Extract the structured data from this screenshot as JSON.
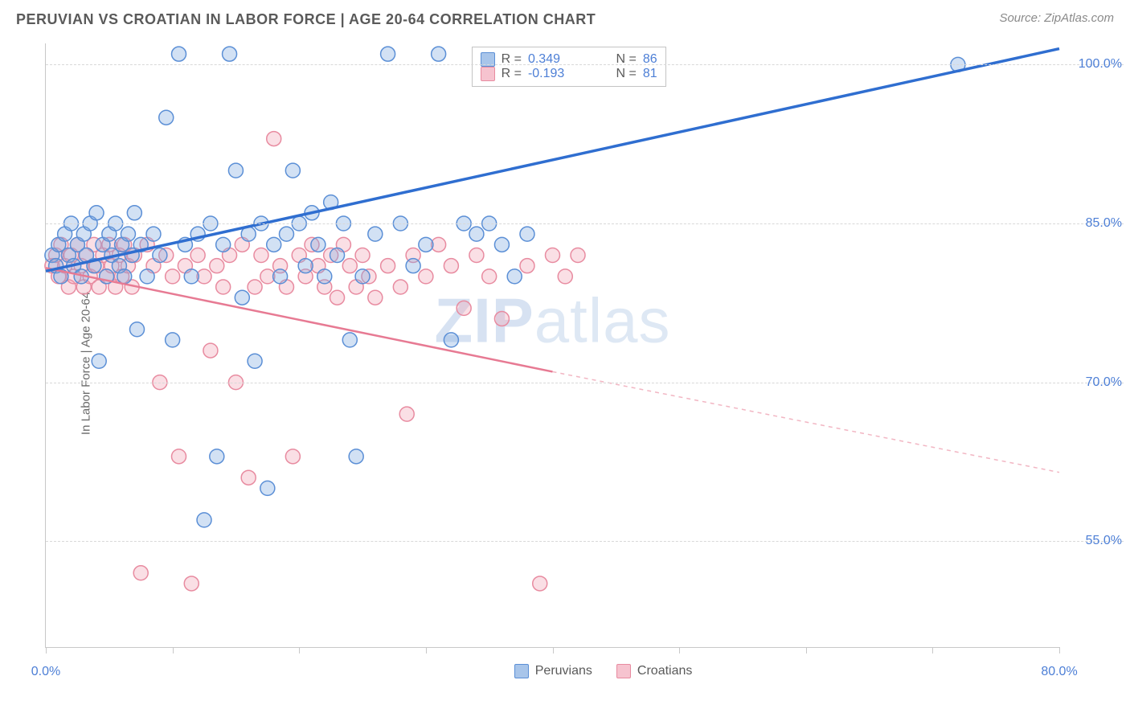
{
  "header": {
    "title": "PERUVIAN VS CROATIAN IN LABOR FORCE | AGE 20-64 CORRELATION CHART",
    "source": "Source: ZipAtlas.com"
  },
  "axes": {
    "y_label": "In Labor Force | Age 20-64",
    "x_min": 0.0,
    "x_max": 80.0,
    "y_min": 45.0,
    "y_max": 102.0,
    "y_ticks": [
      55.0,
      70.0,
      85.0,
      100.0
    ],
    "y_tick_labels": [
      "55.0%",
      "70.0%",
      "85.0%",
      "100.0%"
    ],
    "x_ticks": [
      0,
      10,
      20,
      30,
      40,
      50,
      60,
      70,
      80
    ],
    "x_tick_labels_shown": {
      "0": "0.0%",
      "80": "80.0%"
    }
  },
  "series": {
    "peruvians": {
      "label": "Peruvians",
      "color_fill": "#7ea9e0",
      "color_stroke": "#5b8fd6",
      "marker_radius": 9,
      "R": "0.349",
      "N": "86",
      "trend": {
        "x1": 0,
        "y1": 80.5,
        "x2": 80,
        "y2": 101.5,
        "width": 3.5,
        "color": "#2f6ed0",
        "dash": ""
      },
      "points": [
        [
          0.5,
          82
        ],
        [
          0.8,
          81
        ],
        [
          1.0,
          83
        ],
        [
          1.2,
          80
        ],
        [
          1.5,
          84
        ],
        [
          1.8,
          82
        ],
        [
          2.0,
          85
        ],
        [
          2.2,
          81
        ],
        [
          2.5,
          83
        ],
        [
          2.8,
          80
        ],
        [
          3.0,
          84
        ],
        [
          3.2,
          82
        ],
        [
          3.5,
          85
        ],
        [
          3.8,
          81
        ],
        [
          4.0,
          86
        ],
        [
          4.2,
          72
        ],
        [
          4.5,
          83
        ],
        [
          4.8,
          80
        ],
        [
          5.0,
          84
        ],
        [
          5.2,
          82
        ],
        [
          5.5,
          85
        ],
        [
          5.8,
          81
        ],
        [
          6.0,
          83
        ],
        [
          6.2,
          80
        ],
        [
          6.5,
          84
        ],
        [
          6.8,
          82
        ],
        [
          7.0,
          86
        ],
        [
          7.2,
          75
        ],
        [
          7.5,
          83
        ],
        [
          8.0,
          80
        ],
        [
          8.5,
          84
        ],
        [
          9.0,
          82
        ],
        [
          9.5,
          95
        ],
        [
          10.0,
          74
        ],
        [
          10.5,
          101
        ],
        [
          11.0,
          83
        ],
        [
          11.5,
          80
        ],
        [
          12.0,
          84
        ],
        [
          12.5,
          57
        ],
        [
          13.0,
          85
        ],
        [
          13.5,
          63
        ],
        [
          14.0,
          83
        ],
        [
          14.5,
          101
        ],
        [
          15.0,
          90
        ],
        [
          15.5,
          78
        ],
        [
          16.0,
          84
        ],
        [
          16.5,
          72
        ],
        [
          17.0,
          85
        ],
        [
          17.5,
          60
        ],
        [
          18.0,
          83
        ],
        [
          18.5,
          80
        ],
        [
          19.0,
          84
        ],
        [
          19.5,
          90
        ],
        [
          20.0,
          85
        ],
        [
          20.5,
          81
        ],
        [
          21.0,
          86
        ],
        [
          21.5,
          83
        ],
        [
          22.0,
          80
        ],
        [
          22.5,
          87
        ],
        [
          23.0,
          82
        ],
        [
          23.5,
          85
        ],
        [
          24.0,
          74
        ],
        [
          24.5,
          63
        ],
        [
          25.0,
          80
        ],
        [
          26.0,
          84
        ],
        [
          27.0,
          101
        ],
        [
          28.0,
          85
        ],
        [
          29.0,
          81
        ],
        [
          30.0,
          83
        ],
        [
          31.0,
          101
        ],
        [
          32.0,
          74
        ],
        [
          33.0,
          85
        ],
        [
          34.0,
          84
        ],
        [
          35.0,
          85
        ],
        [
          36.0,
          83
        ],
        [
          37.0,
          80
        ],
        [
          38.0,
          84
        ],
        [
          72.0,
          100
        ]
      ]
    },
    "croatians": {
      "label": "Croatians",
      "color_fill": "#f0a4b4",
      "color_stroke": "#e88ba0",
      "marker_radius": 9,
      "R": "-0.193",
      "N": "81",
      "trend_solid": {
        "x1": 0,
        "y1": 80.8,
        "x2": 40,
        "y2": 71.0,
        "width": 2.5,
        "color": "#e77a93",
        "dash": ""
      },
      "trend_dash": {
        "x1": 40,
        "y1": 71.0,
        "x2": 80,
        "y2": 61.5,
        "width": 1.5,
        "color": "#f2b6c3",
        "dash": "5,5"
      },
      "points": [
        [
          0.5,
          81
        ],
        [
          0.8,
          82
        ],
        [
          1.0,
          80
        ],
        [
          1.2,
          83
        ],
        [
          1.5,
          81
        ],
        [
          1.8,
          79
        ],
        [
          2.0,
          82
        ],
        [
          2.2,
          80
        ],
        [
          2.5,
          83
        ],
        [
          2.8,
          81
        ],
        [
          3.0,
          79
        ],
        [
          3.2,
          82
        ],
        [
          3.5,
          80
        ],
        [
          3.8,
          83
        ],
        [
          4.0,
          81
        ],
        [
          4.2,
          79
        ],
        [
          4.5,
          82
        ],
        [
          4.8,
          80
        ],
        [
          5.0,
          83
        ],
        [
          5.2,
          81
        ],
        [
          5.5,
          79
        ],
        [
          5.8,
          82
        ],
        [
          6.0,
          80
        ],
        [
          6.2,
          83
        ],
        [
          6.5,
          81
        ],
        [
          6.8,
          79
        ],
        [
          7.0,
          82
        ],
        [
          7.5,
          52
        ],
        [
          8.0,
          83
        ],
        [
          8.5,
          81
        ],
        [
          9.0,
          70
        ],
        [
          9.5,
          82
        ],
        [
          10.0,
          80
        ],
        [
          10.5,
          63
        ],
        [
          11.0,
          81
        ],
        [
          11.5,
          51
        ],
        [
          12.0,
          82
        ],
        [
          12.5,
          80
        ],
        [
          13.0,
          73
        ],
        [
          13.5,
          81
        ],
        [
          14.0,
          79
        ],
        [
          14.5,
          82
        ],
        [
          15.0,
          70
        ],
        [
          15.5,
          83
        ],
        [
          16.0,
          61
        ],
        [
          16.5,
          79
        ],
        [
          17.0,
          82
        ],
        [
          17.5,
          80
        ],
        [
          18.0,
          93
        ],
        [
          18.5,
          81
        ],
        [
          19.0,
          79
        ],
        [
          19.5,
          63
        ],
        [
          20.0,
          82
        ],
        [
          20.5,
          80
        ],
        [
          21.0,
          83
        ],
        [
          21.5,
          81
        ],
        [
          22.0,
          79
        ],
        [
          22.5,
          82
        ],
        [
          23.0,
          78
        ],
        [
          23.5,
          83
        ],
        [
          24.0,
          81
        ],
        [
          24.5,
          79
        ],
        [
          25.0,
          82
        ],
        [
          25.5,
          80
        ],
        [
          26.0,
          78
        ],
        [
          27.0,
          81
        ],
        [
          28.0,
          79
        ],
        [
          28.5,
          67
        ],
        [
          29.0,
          82
        ],
        [
          30.0,
          80
        ],
        [
          31.0,
          83
        ],
        [
          32.0,
          81
        ],
        [
          33.0,
          77
        ],
        [
          34.0,
          82
        ],
        [
          35.0,
          80
        ],
        [
          36.0,
          76
        ],
        [
          38.0,
          81
        ],
        [
          39.0,
          51
        ],
        [
          40.0,
          82
        ],
        [
          41.0,
          80
        ],
        [
          42.0,
          82
        ]
      ]
    }
  },
  "legend_top": {
    "rows": [
      {
        "swatch_fill": "#a8c5ea",
        "swatch_stroke": "#5b8fd6",
        "r_label": "R =",
        "r_val": "0.349",
        "n_label": "N =",
        "n_val": "86"
      },
      {
        "swatch_fill": "#f6c3cf",
        "swatch_stroke": "#e88ba0",
        "r_label": "R =",
        "r_val": "-0.193",
        "n_label": "N =",
        "n_val": "81"
      }
    ]
  },
  "legend_bottom": {
    "items": [
      {
        "swatch_fill": "#a8c5ea",
        "swatch_stroke": "#5b8fd6",
        "label": "Peruvians"
      },
      {
        "swatch_fill": "#f6c3cf",
        "swatch_stroke": "#e88ba0",
        "label": "Croatians"
      }
    ]
  },
  "watermark": {
    "a": "ZIP",
    "b": "atlas"
  },
  "styling": {
    "background": "#ffffff",
    "grid_color": "#d8d8d8",
    "axis_color": "#c8c8c8",
    "tick_label_color": "#4d7fd6",
    "title_color": "#5a5a5a"
  }
}
